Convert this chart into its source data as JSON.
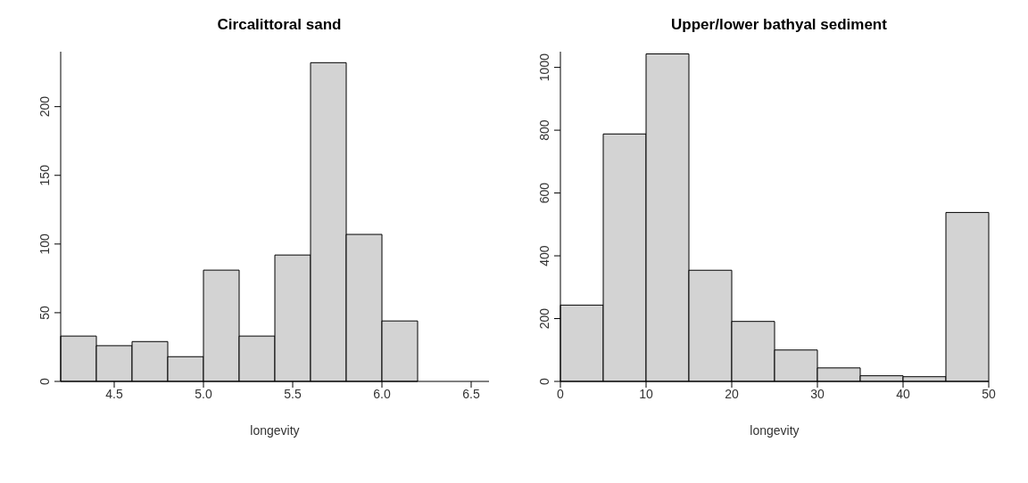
{
  "chart_data": [
    {
      "type": "histogram",
      "title": "Circalittoral sand",
      "xlabel": "longevity",
      "bins": [
        4.2,
        4.4,
        4.6,
        4.8,
        5.0,
        5.2,
        5.4,
        5.6,
        5.8,
        6.0,
        6.2,
        6.4,
        6.6
      ],
      "values": [
        33,
        26,
        29,
        18,
        81,
        33,
        92,
        232,
        107,
        44,
        0,
        0
      ],
      "color": "#d3d3d3",
      "xlim": [
        4.2,
        6.6
      ],
      "xticks": [
        4.5,
        {
          "value": 5,
          "label": "5.0"
        },
        5.5,
        {
          "value": 6,
          "label": "6.0"
        },
        6.5
      ],
      "ylim": [
        0,
        240
      ],
      "yticks": [
        0,
        50,
        100,
        150,
        200
      ]
    },
    {
      "type": "histogram",
      "title": "Upper/lower bathyal sediment",
      "xlabel": "longevity",
      "bins": [
        0,
        5,
        10,
        15,
        20,
        25,
        30,
        35,
        40,
        45,
        50
      ],
      "values": [
        243,
        788,
        1043,
        354,
        191,
        100,
        43,
        18,
        15,
        538
      ],
      "color": "#d3d3d3",
      "xlim": [
        0,
        50
      ],
      "xticks": [
        0,
        10,
        20,
        30,
        40,
        50
      ],
      "ylim": [
        0,
        1050
      ],
      "yticks": [
        0,
        200,
        400,
        600,
        800,
        1000
      ]
    }
  ]
}
